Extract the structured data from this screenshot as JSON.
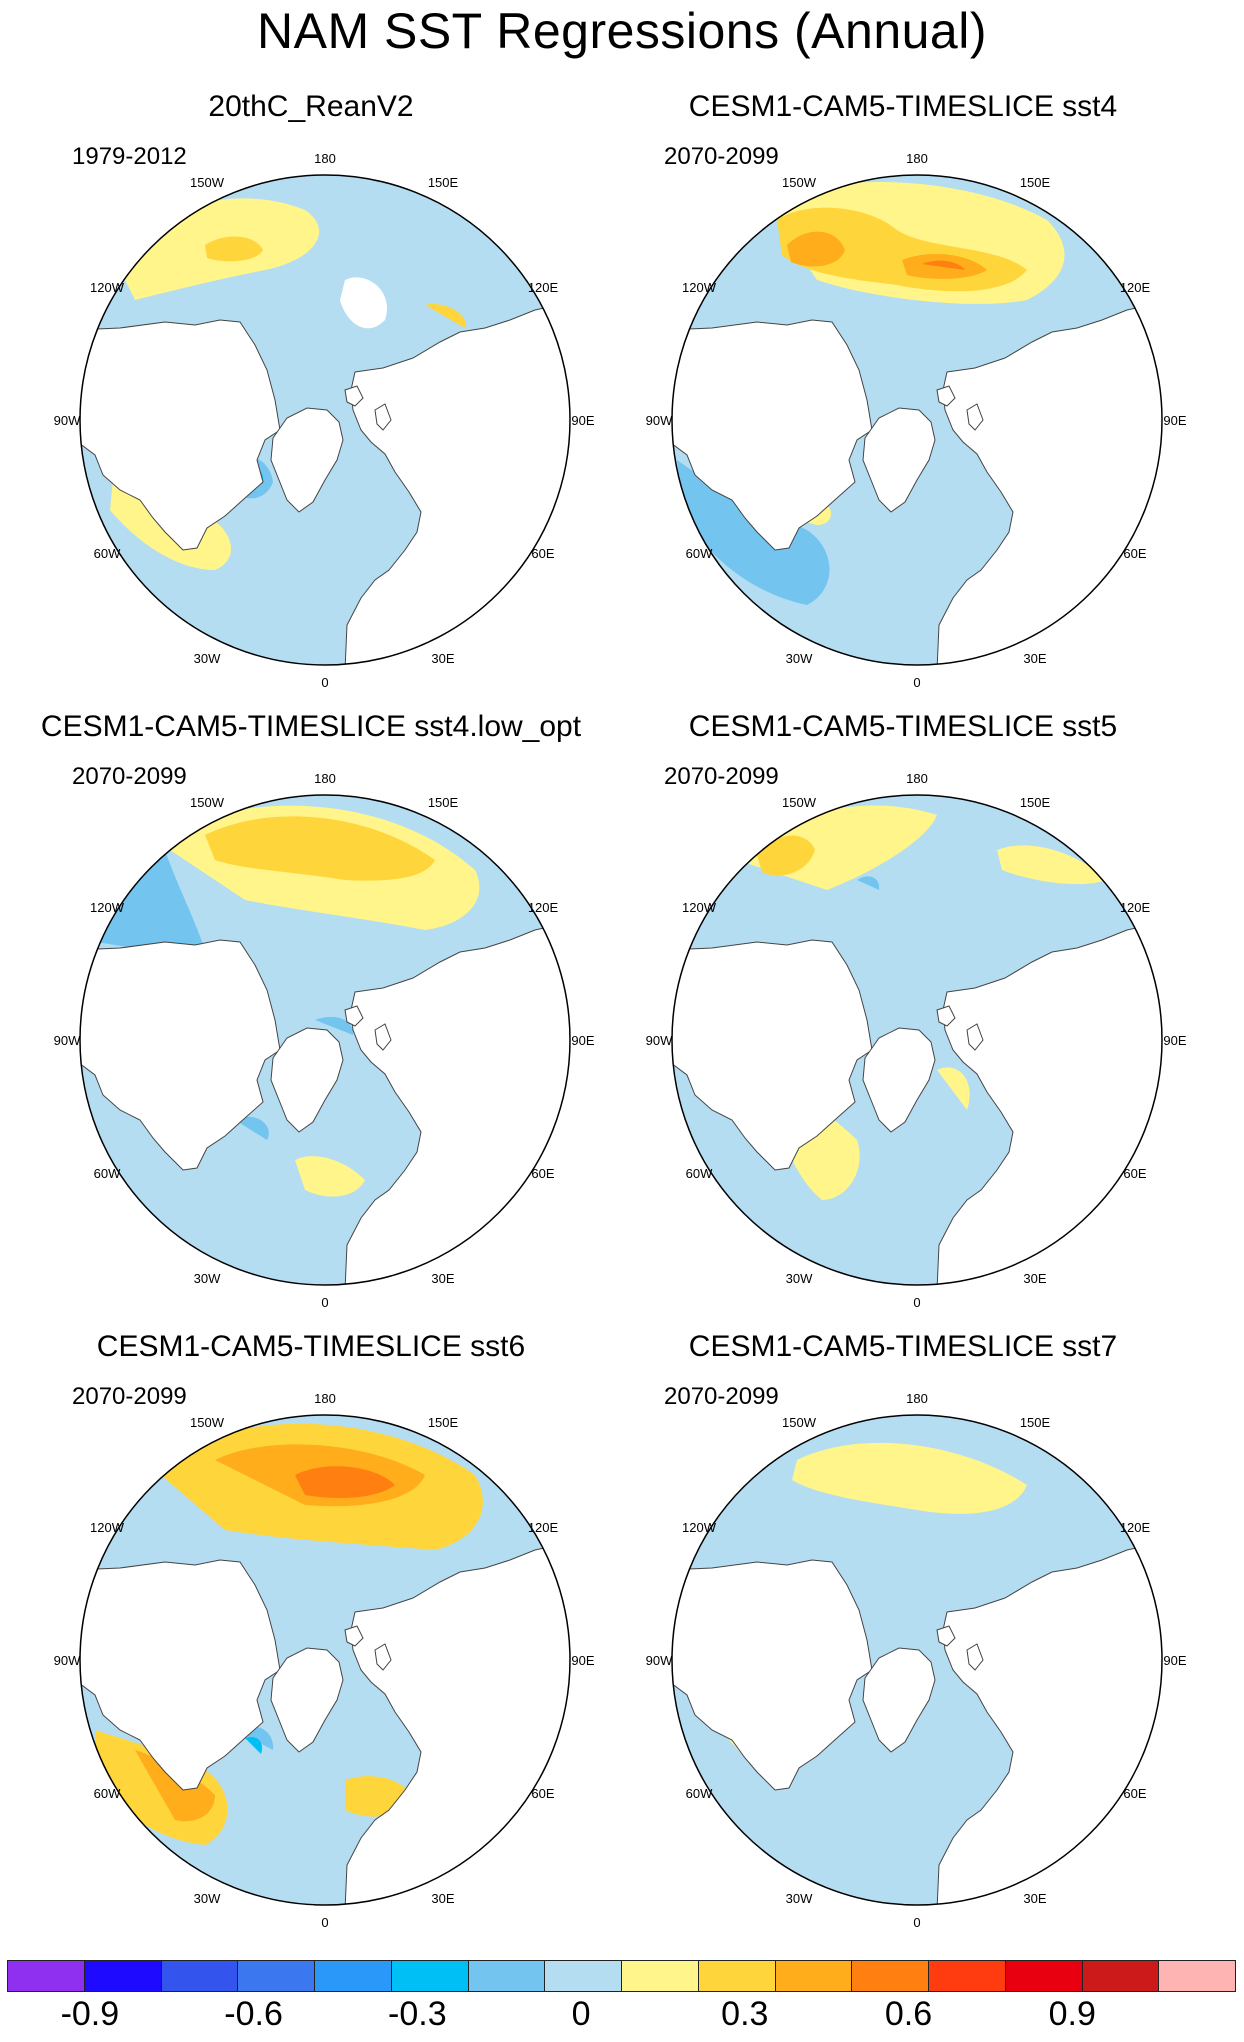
{
  "figure": {
    "title": "NAM SST Regressions (Annual)"
  },
  "panels": [
    {
      "title": "20thC_ReanV2",
      "period": "1979-2012",
      "pattern": "reanalysis"
    },
    {
      "title": "CESM1-CAM5-TIMESLICE sst4",
      "period": "2070-2099",
      "pattern": "sst4"
    },
    {
      "title": "CESM1-CAM5-TIMESLICE sst4.low_opt",
      "period": "2070-2099",
      "pattern": "sst4low"
    },
    {
      "title": "CESM1-CAM5-TIMESLICE sst5",
      "period": "2070-2099",
      "pattern": "sst5"
    },
    {
      "title": "CESM1-CAM5-TIMESLICE sst6",
      "period": "2070-2099",
      "pattern": "sst6"
    },
    {
      "title": "CESM1-CAM5-TIMESLICE sst7",
      "period": "2070-2099",
      "pattern": "sst7"
    }
  ],
  "longitude_labels": [
    "180",
    "150E",
    "120E",
    "90E",
    "60E",
    "30E",
    "0",
    "30W",
    "60W",
    "90W",
    "120W",
    "150W"
  ],
  "colorbar": {
    "colors": [
      "#8f2ff0",
      "#1d0aff",
      "#3355ee",
      "#3b78f0",
      "#2a98f8",
      "#00bff5",
      "#73c5f0",
      "#b4ddf2",
      "#fff58a",
      "#ffd53c",
      "#ffad1a",
      "#ff7f10",
      "#ff3c10",
      "#e80010",
      "#cc1a1a",
      "#ffb4b4"
    ],
    "labels": [
      "-0.9",
      "-0.6",
      "-0.3",
      "0",
      "0.3",
      "0.6",
      "0.9"
    ],
    "label_values": [
      -0.9,
      -0.6,
      -0.3,
      0,
      0.3,
      0.6,
      0.9
    ],
    "min": -1.05,
    "max": 1.2
  }
}
